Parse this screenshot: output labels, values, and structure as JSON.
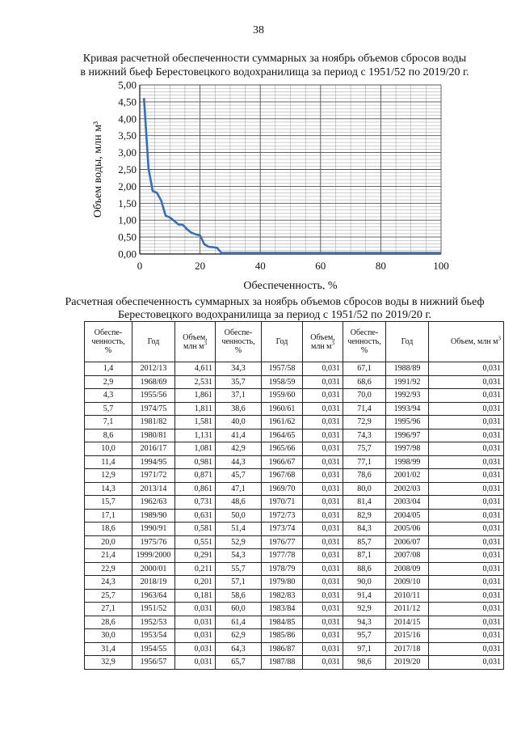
{
  "page": {
    "number": "38"
  },
  "chart_title": {
    "line1": "Кривая расчетной обеспеченности суммарных за ноябрь объемов сбросов воды",
    "line2": "в нижний бьеф Берестовецкого водохранилища за период с 1951/52 по 2019/20 г."
  },
  "chart_data": {
    "type": "line",
    "xlabel": "Обеспеченность, %",
    "ylabel": "Объем воды, млн м³",
    "xlim": [
      0,
      100
    ],
    "ylim": [
      0,
      5
    ],
    "x_ticks": [
      "0",
      "20",
      "40",
      "60",
      "80",
      "100"
    ],
    "y_ticks": [
      "0,00",
      "0,50",
      "1,00",
      "1,50",
      "2,00",
      "2,50",
      "3,00",
      "3,50",
      "4,00",
      "4,50",
      "5,00"
    ],
    "grid": true,
    "series_color": "#2f6fc6",
    "x": [
      1.4,
      2.9,
      4.3,
      5.7,
      7.1,
      8.6,
      10.0,
      11.4,
      12.9,
      14.3,
      15.7,
      17.1,
      18.6,
      20.0,
      21.4,
      22.9,
      24.3,
      25.7,
      27.1,
      28.6,
      30.0,
      31.4,
      32.9,
      34.3,
      35.7,
      37.1,
      38.6,
      40.0,
      41.4,
      42.9,
      44.3,
      45.7,
      47.1,
      48.6,
      50.0,
      51.4,
      52.9,
      54.3,
      55.7,
      57.1,
      58.6,
      60.0,
      61.4,
      62.9,
      64.3,
      65.7,
      67.1,
      68.6,
      70.0,
      71.4,
      72.9,
      74.3,
      75.7,
      77.1,
      78.6,
      80.0,
      81.4,
      82.9,
      84.3,
      85.7,
      87.1,
      88.6,
      90.0,
      91.4,
      92.9,
      94.3,
      95.7,
      97.1,
      98.6
    ],
    "y": [
      4.611,
      2.531,
      1.861,
      1.811,
      1.581,
      1.131,
      1.081,
      0.981,
      0.871,
      0.861,
      0.731,
      0.631,
      0.581,
      0.551,
      0.291,
      0.211,
      0.201,
      0.181,
      0.031,
      0.031,
      0.031,
      0.031,
      0.031,
      0.031,
      0.031,
      0.031,
      0.031,
      0.031,
      0.031,
      0.031,
      0.031,
      0.031,
      0.031,
      0.031,
      0.031,
      0.031,
      0.031,
      0.031,
      0.031,
      0.031,
      0.031,
      0.031,
      0.031,
      0.031,
      0.031,
      0.031,
      0.031,
      0.031,
      0.031,
      0.031,
      0.031,
      0.031,
      0.031,
      0.031,
      0.031,
      0.031,
      0.031,
      0.031,
      0.031,
      0.031,
      0.031,
      0.031,
      0.031,
      0.031,
      0.031,
      0.031,
      0.031,
      0.031,
      0.031
    ]
  },
  "table_title": {
    "line1": "Расчетная обеспеченность суммарных за ноябрь объемов сбросов воды в нижний бьеф",
    "line2": "Берестовецкого водохранилища за период с 1951/52 по 2019/20 г."
  },
  "table": {
    "header_prob": "Обеспе-ченность, %",
    "header_year": "Год",
    "header_volume": "Объем, млн м",
    "rows": [
      [
        "1,4",
        "2012/13",
        "4,611",
        "34,3",
        "1957/58",
        "0,031",
        "67,1",
        "1988/89",
        "0,031"
      ],
      [
        "2,9",
        "1968/69",
        "2,531",
        "35,7",
        "1958/59",
        "0,031",
        "68,6",
        "1991/92",
        "0,031"
      ],
      [
        "4,3",
        "1955/56",
        "1,861",
        "37,1",
        "1959/60",
        "0,031",
        "70,0",
        "1992/93",
        "0,031"
      ],
      [
        "5,7",
        "1974/75",
        "1,811",
        "38,6",
        "1960/61",
        "0,031",
        "71,4",
        "1993/94",
        "0,031"
      ],
      [
        "7,1",
        "1981/82",
        "1,581",
        "40,0",
        "1961/62",
        "0,031",
        "72,9",
        "1995/96",
        "0,031"
      ],
      [
        "8,6",
        "1980/81",
        "1,131",
        "41,4",
        "1964/65",
        "0,031",
        "74,3",
        "1996/97",
        "0,031"
      ],
      [
        "10,0",
        "2016/17",
        "1,081",
        "42,9",
        "1965/66",
        "0,031",
        "75,7",
        "1997/98",
        "0,031"
      ],
      [
        "11,4",
        "1994/95",
        "0,981",
        "44,3",
        "1966/67",
        "0,031",
        "77,1",
        "1998/99",
        "0,031"
      ],
      [
        "12,9",
        "1971/72",
        "0,871",
        "45,7",
        "1967/68",
        "0,031",
        "78,6",
        "2001/02",
        "0,031"
      ],
      [
        "14,3",
        "2013/14",
        "0,861",
        "47,1",
        "1969/70",
        "0,031",
        "80,0",
        "2002/03",
        "0,031"
      ],
      [
        "15,7",
        "1962/63",
        "0,731",
        "48,6",
        "1970/71",
        "0,031",
        "81,4",
        "2003/04",
        "0,031"
      ],
      [
        "17,1",
        "1989/90",
        "0,631",
        "50,0",
        "1972/73",
        "0,031",
        "82,9",
        "2004/05",
        "0,031"
      ],
      [
        "18,6",
        "1990/91",
        "0,581",
        "51,4",
        "1973/74",
        "0,031",
        "84,3",
        "2005/06",
        "0,031"
      ],
      [
        "20,0",
        "1975/76",
        "0,551",
        "52,9",
        "1976/77",
        "0,031",
        "85,7",
        "2006/07",
        "0,031"
      ],
      [
        "21,4",
        "1999/2000",
        "0,291",
        "54,3",
        "1977/78",
        "0,031",
        "87,1",
        "2007/08",
        "0,031"
      ],
      [
        "22,9",
        "2000/01",
        "0,211",
        "55,7",
        "1978/79",
        "0,031",
        "88,6",
        "2008/09",
        "0,031"
      ],
      [
        "24,3",
        "2018/19",
        "0,201",
        "57,1",
        "1979/80",
        "0,031",
        "90,0",
        "2009/10",
        "0,031"
      ],
      [
        "25,7",
        "1963/64",
        "0,181",
        "58,6",
        "1982/83",
        "0,031",
        "91,4",
        "2010/11",
        "0,031"
      ],
      [
        "27,1",
        "1951/52",
        "0,031",
        "60,0",
        "1983/84",
        "0,031",
        "92,9",
        "2011/12",
        "0,031"
      ],
      [
        "28,6",
        "1952/53",
        "0,031",
        "61,4",
        "1984/85",
        "0,031",
        "94,3",
        "2014/15",
        "0,031"
      ],
      [
        "30,0",
        "1953/54",
        "0,031",
        "62,9",
        "1985/86",
        "0,031",
        "95,7",
        "2015/16",
        "0,031"
      ],
      [
        "31,4",
        "1954/55",
        "0,031",
        "64,3",
        "1986/87",
        "0,031",
        "97,1",
        "2017/18",
        "0,031"
      ],
      [
        "32,9",
        "1956/57",
        "0,031",
        "65,7",
        "1987/88",
        "0,031",
        "98,6",
        "2019/20",
        "0,031"
      ]
    ]
  }
}
